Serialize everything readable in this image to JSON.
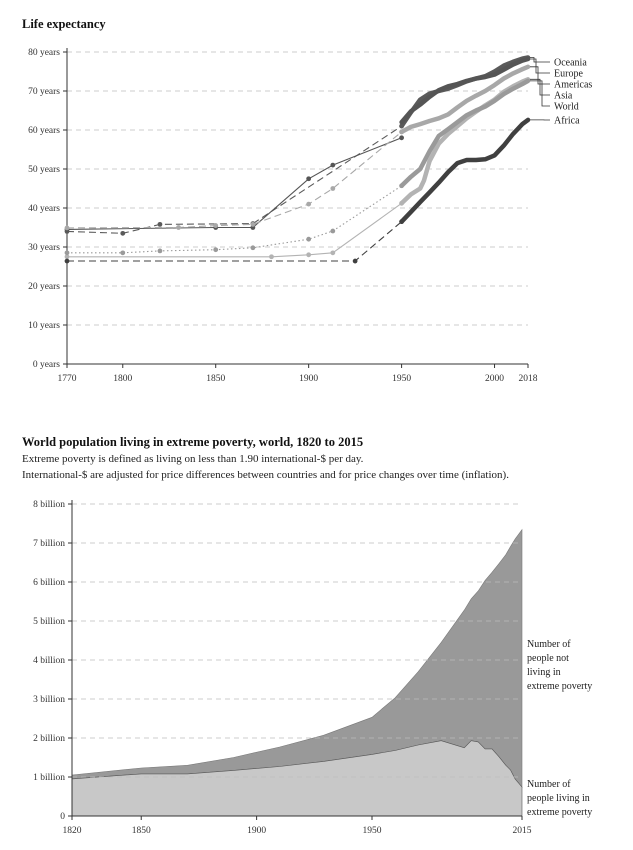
{
  "chart_data": [
    {
      "type": "line",
      "title": "Life expectancy",
      "xlim": [
        1770,
        2018
      ],
      "ylim": [
        0,
        80
      ],
      "x_ticks": [
        1770,
        1800,
        1850,
        1900,
        1950,
        2000,
        2018
      ],
      "y_ticks": [
        "0 years",
        "10 years",
        "20 years",
        "30 years",
        "40 years",
        "50 years",
        "60 years",
        "70 years",
        "80 years"
      ],
      "grid": true,
      "legend": "right",
      "series": [
        {
          "name": "Oceania",
          "color": "#5a5a5a",
          "historic": [
            [
              1770,
              34.0
            ],
            [
              1800,
              33.5
            ],
            [
              1820,
              35.8
            ],
            [
              1870,
              36.0
            ],
            [
              1950,
              61.0
            ]
          ],
          "historic_style": "dashed",
          "modern": [
            [
              1950,
              61.0
            ],
            [
              1955,
              64.5
            ],
            [
              1960,
              67.8
            ],
            [
              1965,
              69.3
            ],
            [
              1970,
              70.0
            ],
            [
              1975,
              70.6
            ],
            [
              1980,
              71.5
            ],
            [
              1985,
              72.5
            ],
            [
              1990,
              73.2
            ],
            [
              1995,
              73.8
            ],
            [
              2000,
              75.0
            ],
            [
              2005,
              76.5
            ],
            [
              2010,
              77.5
            ],
            [
              2015,
              78.3
            ],
            [
              2018,
              78.6
            ]
          ]
        },
        {
          "name": "Europe",
          "color": "#555555",
          "historic": [
            [
              1770,
              34.5
            ],
            [
              1850,
              35.0
            ],
            [
              1870,
              35.0
            ],
            [
              1900,
              47.5
            ],
            [
              1913,
              51.0
            ],
            [
              1950,
              58.0
            ]
          ],
          "historic_style": "solid",
          "modern": [
            [
              1950,
              62.0
            ],
            [
              1955,
              64.8
            ],
            [
              1960,
              66.5
            ],
            [
              1965,
              68.5
            ],
            [
              1970,
              70.2
            ],
            [
              1975,
              71.2
            ],
            [
              1980,
              71.8
            ],
            [
              1985,
              72.6
            ],
            [
              1990,
              73.2
            ],
            [
              1995,
              73.6
            ],
            [
              2000,
              74.2
            ],
            [
              2005,
              75.5
            ],
            [
              2010,
              76.8
            ],
            [
              2015,
              77.8
            ],
            [
              2018,
              78.2
            ]
          ]
        },
        {
          "name": "Americas",
          "color": "#a8a8a8",
          "historic": [
            [
              1770,
              34.9
            ],
            [
              1830,
              35.0
            ],
            [
              1850,
              35.5
            ],
            [
              1870,
              35.8
            ],
            [
              1900,
              41.0
            ],
            [
              1913,
              45.0
            ],
            [
              1950,
              59.5
            ]
          ],
          "historic_style": "dashed",
          "modern": [
            [
              1950,
              59.5
            ],
            [
              1955,
              60.8
            ],
            [
              1960,
              61.5
            ],
            [
              1965,
              62.3
            ],
            [
              1970,
              63.0
            ],
            [
              1975,
              64.0
            ],
            [
              1980,
              65.8
            ],
            [
              1985,
              67.5
            ],
            [
              1990,
              68.8
            ],
            [
              1995,
              70.0
            ],
            [
              2000,
              71.5
            ],
            [
              2005,
              73.2
            ],
            [
              2010,
              74.5
            ],
            [
              2015,
              75.6
            ],
            [
              2018,
              76.2
            ]
          ]
        },
        {
          "name": "Asia",
          "color": "#b3b3b3",
          "historic": [
            [
              1770,
              27.5
            ],
            [
              1880,
              27.5
            ],
            [
              1900,
              28.0
            ],
            [
              1913,
              28.5
            ],
            [
              1950,
              41.2
            ]
          ],
          "historic_style": "solid",
          "modern": [
            [
              1950,
              41.2
            ],
            [
              1955,
              43.5
            ],
            [
              1960,
              45.0
            ],
            [
              1962,
              47.0
            ],
            [
              1965,
              52.0
            ],
            [
              1970,
              56.5
            ],
            [
              1975,
              59.0
            ],
            [
              1980,
              61.0
            ],
            [
              1985,
              63.0
            ],
            [
              1990,
              64.7
            ],
            [
              1995,
              66.3
            ],
            [
              2000,
              67.8
            ],
            [
              2005,
              69.8
            ],
            [
              2010,
              71.2
            ],
            [
              2015,
              72.4
            ],
            [
              2018,
              73.0
            ]
          ]
        },
        {
          "name": "World",
          "color": "#9a9a9a",
          "historic": [
            [
              1770,
              28.5
            ],
            [
              1800,
              28.5
            ],
            [
              1820,
              29.0
            ],
            [
              1850,
              29.3
            ],
            [
              1870,
              29.8
            ],
            [
              1900,
              32.0
            ],
            [
              1913,
              34.1
            ],
            [
              1950,
              45.7
            ]
          ],
          "historic_style": "dotted",
          "modern": [
            [
              1950,
              45.7
            ],
            [
              1955,
              48.0
            ],
            [
              1960,
              50.0
            ],
            [
              1965,
              54.5
            ],
            [
              1970,
              58.5
            ],
            [
              1975,
              60.2
            ],
            [
              1980,
              62.0
            ],
            [
              1985,
              63.8
            ],
            [
              1990,
              65.0
            ],
            [
              1995,
              66.0
            ],
            [
              2000,
              67.5
            ],
            [
              2005,
              69.2
            ],
            [
              2010,
              70.6
            ],
            [
              2015,
              71.8
            ],
            [
              2018,
              72.6
            ]
          ]
        },
        {
          "name": "Africa",
          "color": "#404040",
          "historic": [
            [
              1770,
              26.4
            ],
            [
              1925,
              26.4
            ],
            [
              1950,
              36.5
            ]
          ],
          "historic_style": "dashed",
          "modern": [
            [
              1950,
              36.5
            ],
            [
              1955,
              39.0
            ],
            [
              1960,
              41.5
            ],
            [
              1965,
              44.0
            ],
            [
              1970,
              46.5
            ],
            [
              1975,
              49.2
            ],
            [
              1980,
              51.5
            ],
            [
              1985,
              52.3
            ],
            [
              1990,
              52.3
            ],
            [
              1995,
              52.5
            ],
            [
              2000,
              53.5
            ],
            [
              2005,
              56.0
            ],
            [
              2010,
              59.0
            ],
            [
              2015,
              61.5
            ],
            [
              2018,
              62.6
            ]
          ]
        }
      ]
    },
    {
      "type": "area",
      "title": "World population living in extreme poverty, world, 1820 to 2015",
      "subtitle_1": "Extreme poverty is defined as living on less than 1.90 international-$ per day.",
      "subtitle_2": "International-$ are adjusted for price differences between countries and for price changes over time (inflation).",
      "xlim": [
        1820,
        2015
      ],
      "ylim": [
        0,
        8
      ],
      "x_ticks": [
        1820,
        1850,
        1900,
        1950,
        2015
      ],
      "y_ticks": [
        "0",
        "1 billion",
        "2 billion",
        "3 billion",
        "4 billion",
        "5 billion",
        "6 billion",
        "7 billion",
        "8 billion"
      ],
      "grid": true,
      "stacked": true,
      "x": [
        1820,
        1850,
        1870,
        1890,
        1910,
        1929,
        1950,
        1960,
        1970,
        1980,
        1990,
        1993,
        1996,
        1999,
        2002,
        2005,
        2008,
        2010,
        2012,
        2015
      ],
      "series": [
        {
          "name": "Number of people living in extreme poverty",
          "color": "#c8c8c8",
          "values": [
            0.95,
            1.08,
            1.08,
            1.17,
            1.27,
            1.4,
            1.58,
            1.68,
            1.82,
            1.93,
            1.75,
            1.93,
            1.9,
            1.72,
            1.72,
            1.52,
            1.3,
            1.18,
            0.95,
            0.74
          ]
        },
        {
          "name": "Number of people not living in extreme poverty",
          "color": "#999999",
          "values": [
            0.1,
            0.15,
            0.22,
            0.33,
            0.5,
            0.67,
            0.95,
            1.35,
            1.88,
            2.52,
            3.53,
            3.64,
            3.87,
            4.32,
            4.53,
            4.95,
            5.4,
            5.73,
            6.15,
            6.6
          ]
        }
      ],
      "labels": {
        "not_poor": [
          "Number of",
          "people not",
          "living in",
          "extreme poverty"
        ],
        "poor": [
          "Number of",
          "people living in",
          "extreme poverty"
        ]
      }
    }
  ]
}
